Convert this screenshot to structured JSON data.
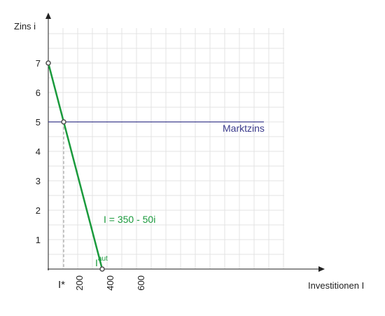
{
  "chart_data": {
    "type": "line",
    "ylabel": "Zins i",
    "xlabel": "Investitionen I",
    "xlim": [
      0,
      1600
    ],
    "ylim": [
      0,
      8
    ],
    "grid": true,
    "y_ticks": [
      "1",
      "2",
      "3",
      "4",
      "5",
      "6",
      "7"
    ],
    "y_tick_values": [
      1,
      2,
      3,
      4,
      5,
      6,
      7
    ],
    "x_ticks": [
      "200",
      "400",
      "600"
    ],
    "x_tick_values": [
      200,
      400,
      600
    ],
    "series": [
      {
        "name": "I = 350 - 50i",
        "color": "#1a9a3c",
        "points": [
          {
            "x": 0,
            "y": 7
          },
          {
            "x": 350,
            "y": 0
          }
        ]
      },
      {
        "name": "Marktzins",
        "color": "#3a3a8c",
        "points": [
          {
            "x": 0,
            "y": 5
          },
          {
            "x": 1400,
            "y": 5
          }
        ]
      }
    ],
    "markers": [
      {
        "x": 0,
        "y": 7
      },
      {
        "x": 100,
        "y": 5
      },
      {
        "x": 350,
        "y": 0
      }
    ],
    "annotations": {
      "equilibrium_label": "I*",
      "equilibrium_x": 100,
      "autonomous_label_base": "I",
      "autonomous_label_sup": "aut"
    }
  }
}
